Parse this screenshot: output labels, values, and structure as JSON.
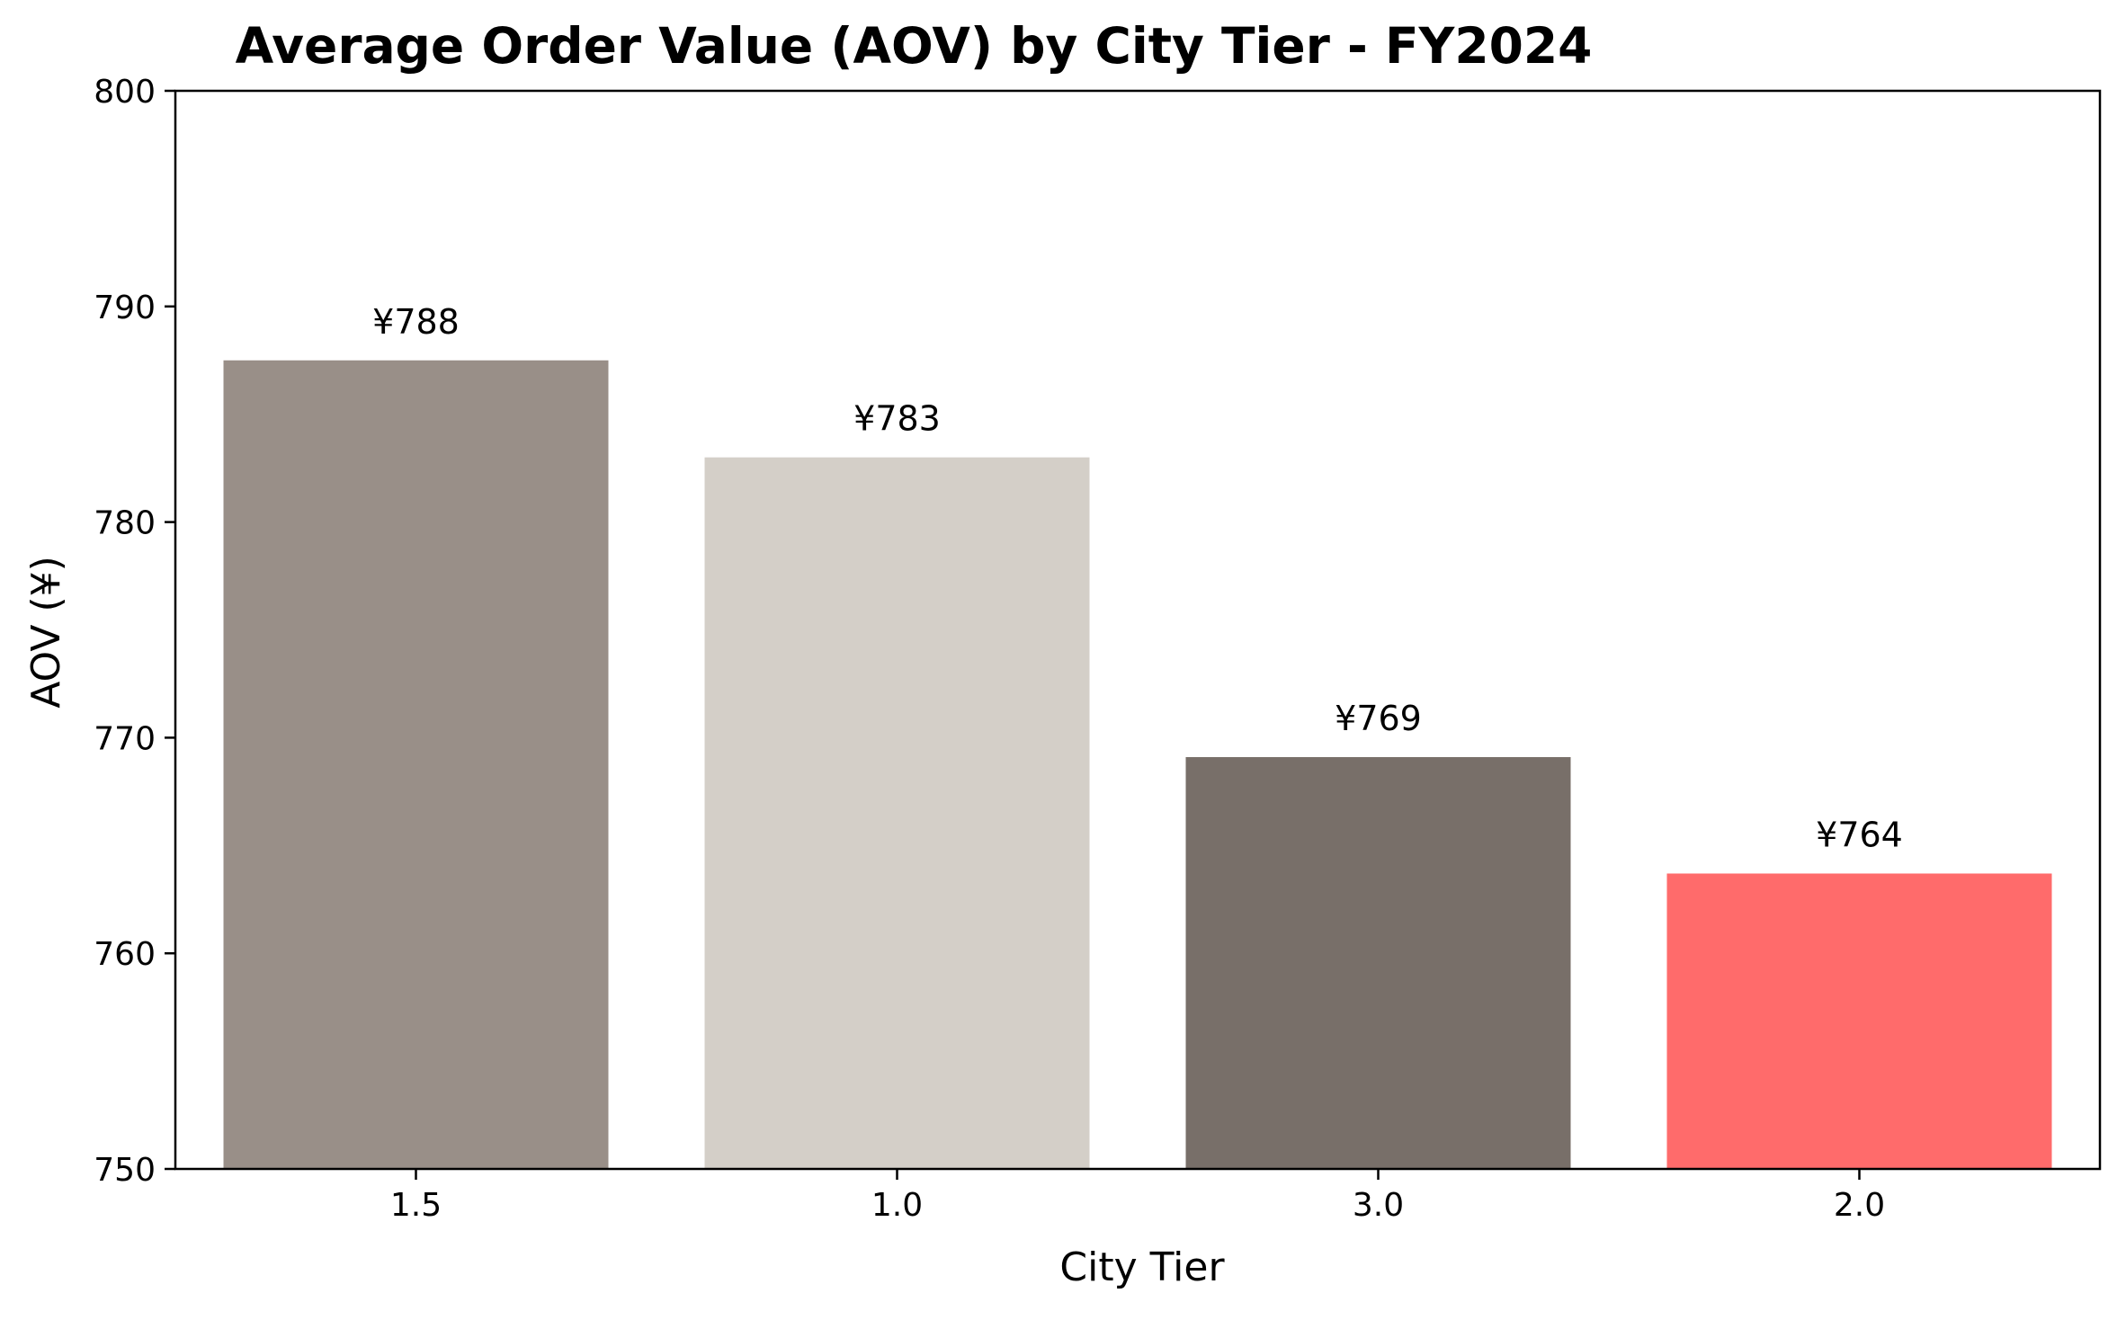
{
  "chart_data": {
    "type": "bar",
    "title": "Average Order Value (AOV) by City Tier - FY2024",
    "xlabel": "City Tier",
    "ylabel": "AOV (¥)",
    "categories": [
      "1.5",
      "1.0",
      "3.0",
      "2.0"
    ],
    "values": [
      787.5,
      783.0,
      769.1,
      763.7
    ],
    "value_labels": [
      "¥788",
      "¥783",
      "¥769",
      "¥764"
    ],
    "colors": [
      "#998f88",
      "#d4cfc8",
      "#786f69",
      "#ff6b6b"
    ],
    "ylim": [
      750,
      800
    ],
    "yticks": [
      750,
      760,
      770,
      780,
      790,
      800
    ],
    "grid": false,
    "legend": "none"
  }
}
